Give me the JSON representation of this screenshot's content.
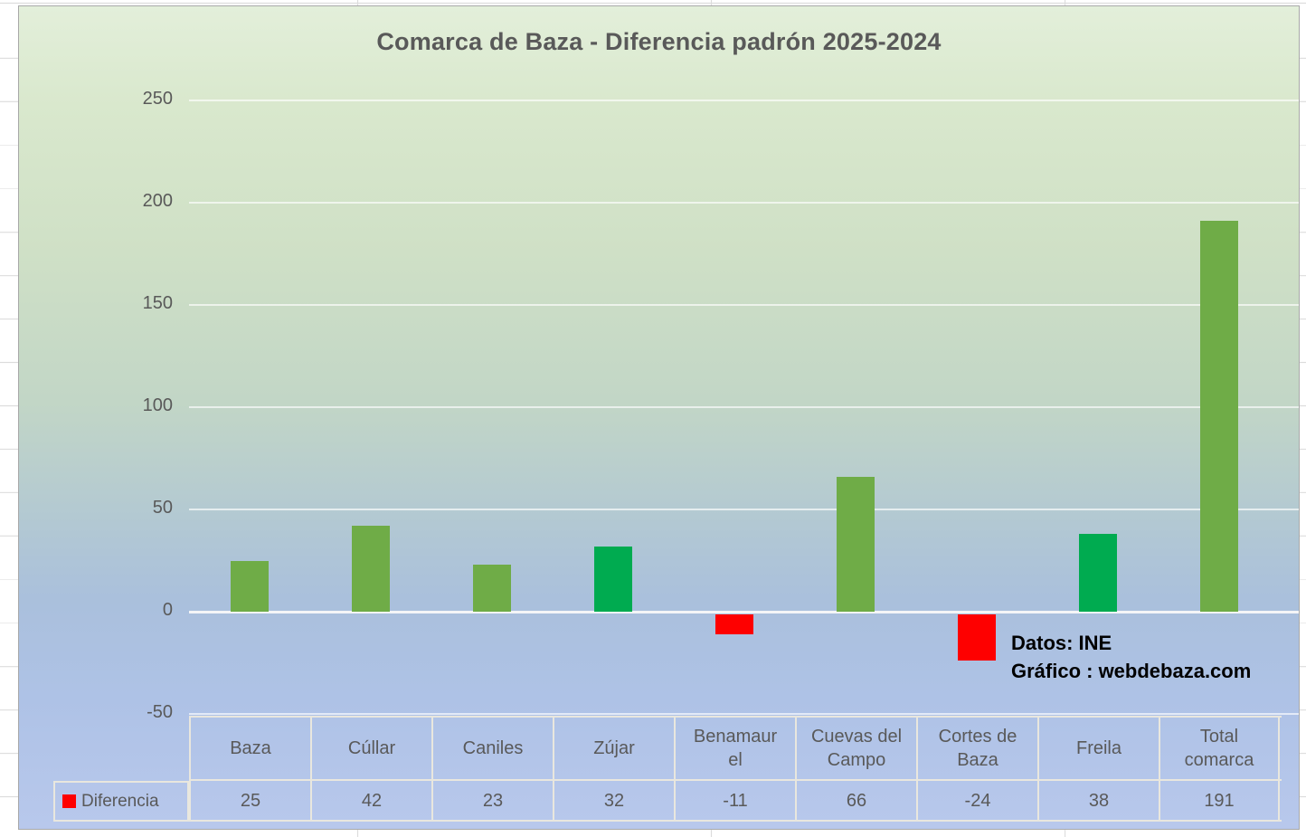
{
  "chart": {
    "title": "Comarca de Baza - Diferencia padrón 2025-2024",
    "annotation": {
      "line1": "Datos: INE",
      "line2": "Gráfico : webdebaza.com"
    },
    "legend": {
      "label": "Diferencia",
      "marker_color": "#fe0000"
    },
    "y_axis": {
      "ticks": [
        250,
        200,
        150,
        100,
        50,
        0,
        -50
      ]
    }
  },
  "table": {
    "legend_label": "Diferencia",
    "headers": [
      "Baza",
      "Cúllar",
      "Caniles",
      "Zújar",
      "Benamaur el",
      "Cuevas del Campo",
      "Cortes de Baza",
      "Freila",
      "Total comarca"
    ],
    "values": [
      "25",
      "42",
      "23",
      "32",
      "-11",
      "66",
      "-24",
      "38",
      "191"
    ]
  },
  "chart_data": {
    "type": "bar",
    "title": "Comarca de Baza - Diferencia padrón 2025-2024",
    "categories": [
      "Baza",
      "Cúllar",
      "Caniles",
      "Zújar",
      "Benamaurel",
      "Cuevas del Campo",
      "Cortes de Baza",
      "Freila",
      "Total comarca"
    ],
    "series": [
      {
        "name": "Diferencia",
        "values": [
          25,
          42,
          23,
          32,
          -11,
          66,
          -24,
          38,
          191
        ]
      }
    ],
    "bar_colors": [
      "#6fac47",
      "#6fac47",
      "#6fac47",
      "#00ab50",
      "#fe0000",
      "#6fac47",
      "#fe0000",
      "#00ab50",
      "#6fac47"
    ],
    "xlabel": "",
    "ylabel": "",
    "ylim": [
      -50,
      250
    ],
    "grid": true,
    "legend_position": "bottom-left attached to data table",
    "annotations": [
      "Datos: INE",
      "Gráfico : webdebaza.com"
    ]
  },
  "colors": {
    "bar_olive_green": "#6fac47",
    "bar_bright_green": "#00ab50",
    "bar_red": "#fe0000",
    "axis_text": "#595959",
    "annotation_text": "#000000"
  }
}
